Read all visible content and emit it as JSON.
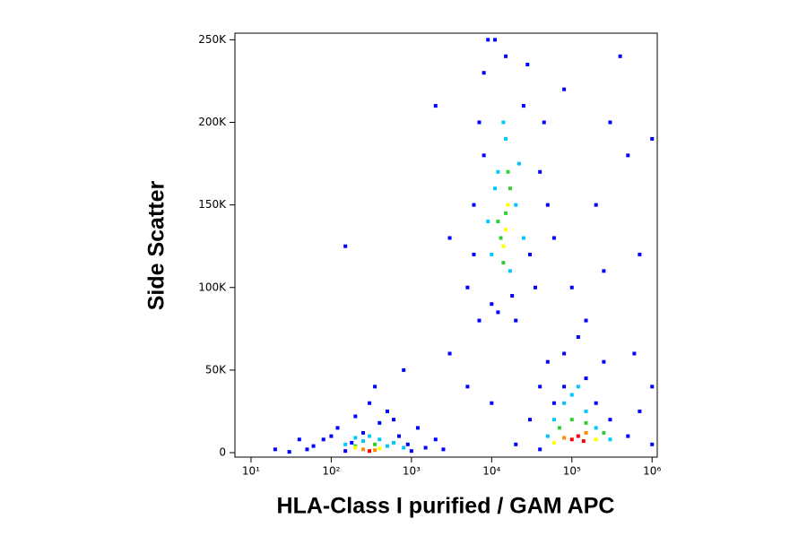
{
  "chart_data": {
    "type": "scatter",
    "x_label": "HLA-Class I purified / GAM APC",
    "y_label": "Side Scatter",
    "xscale": "log",
    "xlim": [
      6.3,
      1160000
    ],
    "ylim": [
      -2700,
      254000
    ],
    "xticks": [
      {
        "value": 10,
        "label": "10¹"
      },
      {
        "value": 100,
        "label": "10²"
      },
      {
        "value": 1000,
        "label": "10³"
      },
      {
        "value": 10000,
        "label": "10⁴"
      },
      {
        "value": 100000,
        "label": "10⁵"
      },
      {
        "value": 1000000,
        "label": "10⁶"
      }
    ],
    "yticks": [
      0,
      {
        "value": 50000,
        "label": "50K"
      },
      {
        "value": 100000,
        "label": "100K"
      },
      {
        "value": 150000,
        "label": "150K"
      },
      {
        "value": 200000,
        "label": "200K"
      },
      {
        "value": 250000,
        "label": "250K"
      }
    ],
    "series": [
      {
        "color": "#0000ff",
        "x": [
          50,
          80,
          120,
          150,
          200,
          250,
          300,
          400,
          500,
          700,
          900,
          1200,
          1500,
          2000,
          30,
          60,
          100,
          180,
          350,
          600,
          1000,
          2500,
          20,
          40,
          5000,
          6000,
          7000,
          8000,
          9000,
          10000,
          20000,
          30000,
          40000,
          25000,
          15000,
          12000,
          6000,
          8000,
          35000,
          50000,
          18000,
          11000,
          45000,
          7000,
          60000,
          28000,
          20000,
          30000,
          40000,
          50000,
          60000,
          80000,
          150000,
          200000,
          300000,
          500000,
          700000,
          1000000,
          1000000,
          40000,
          250000,
          120000,
          80000,
          100000,
          200000,
          300000,
          500000,
          80000,
          400000,
          700000,
          150000,
          1000000,
          250000,
          600000,
          150,
          2000,
          3000,
          800,
          5000,
          10000,
          3000
        ],
        "values": [
          2000,
          8000,
          15000,
          1000,
          22000,
          12000,
          30000,
          18000,
          25000,
          10000,
          5000,
          15000,
          3000,
          8000,
          500,
          4000,
          10000,
          6000,
          40000,
          20000,
          1000,
          2000,
          2000,
          8000,
          100000,
          150000,
          200000,
          230000,
          250000,
          90000,
          80000,
          120000,
          170000,
          210000,
          240000,
          85000,
          120000,
          180000,
          100000,
          150000,
          95000,
          250000,
          200000,
          80000,
          130000,
          235000,
          5000,
          20000,
          40000,
          55000,
          30000,
          60000,
          45000,
          30000,
          20000,
          10000,
          25000,
          40000,
          5000,
          2000,
          55000,
          70000,
          40000,
          100000,
          150000,
          200000,
          180000,
          220000,
          240000,
          120000,
          80000,
          190000,
          110000,
          60000,
          125000,
          210000,
          130000,
          50000,
          40000,
          30000,
          60000
        ]
      },
      {
        "color": "#00c8ff",
        "x": [
          150,
          200,
          250,
          400,
          500,
          600,
          300,
          800,
          10000,
          12000,
          15000,
          20000,
          25000,
          9000,
          17000,
          14000,
          22000,
          11000,
          60000,
          80000,
          100000,
          150000,
          200000,
          300000,
          50000,
          120000
        ],
        "values": [
          5000,
          9000,
          7000,
          8000,
          4000,
          6000,
          10000,
          3000,
          120000,
          170000,
          190000,
          150000,
          130000,
          140000,
          110000,
          200000,
          175000,
          160000,
          20000,
          30000,
          35000,
          25000,
          15000,
          8000,
          10000,
          40000
        ]
      },
      {
        "color": "#32cd32",
        "x": [
          200,
          350,
          13000,
          15000,
          17000,
          14000,
          16000,
          12000,
          70000,
          100000,
          150000,
          250000
        ],
        "values": [
          4000,
          5000,
          130000,
          145000,
          160000,
          115000,
          170000,
          140000,
          15000,
          20000,
          18000,
          12000
        ]
      },
      {
        "color": "#ffff00",
        "x": [
          200,
          400,
          15000,
          16000,
          14000,
          60000,
          200000
        ],
        "values": [
          3000,
          2500,
          135000,
          150000,
          125000,
          6000,
          8000
        ]
      },
      {
        "color": "#ff8c00",
        "x": [
          250,
          350,
          80000,
          150000
        ],
        "values": [
          2000,
          1500,
          9000,
          12000
        ]
      },
      {
        "color": "#ff0000",
        "x": [
          300,
          100000,
          120000,
          140000
        ],
        "values": [
          1000,
          8000,
          10000,
          7000
        ]
      }
    ]
  }
}
